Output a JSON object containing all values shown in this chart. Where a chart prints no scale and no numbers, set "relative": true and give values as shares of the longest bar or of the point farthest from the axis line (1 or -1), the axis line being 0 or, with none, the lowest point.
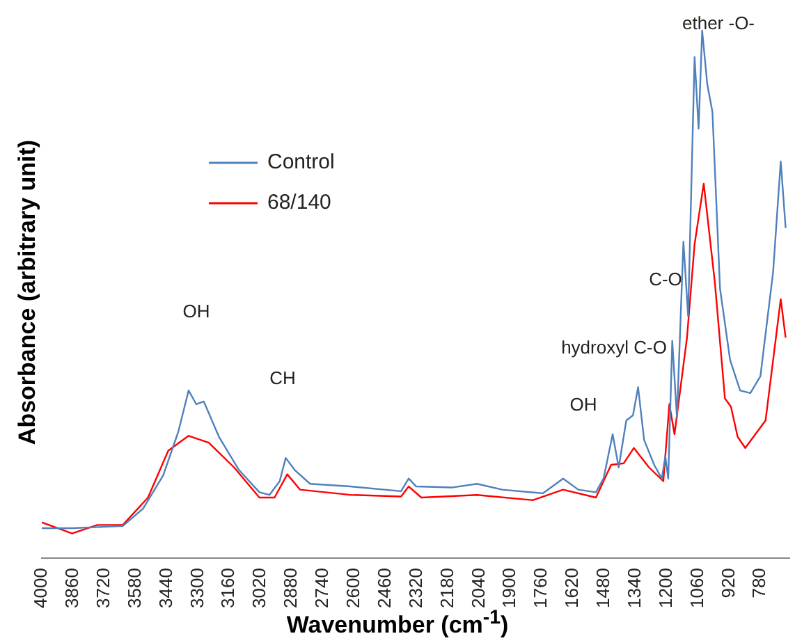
{
  "chart_data": {
    "type": "line",
    "relative": true,
    "xlabel": "Wavenumber (cm$^{-1}$)",
    "ylabel": "Absorbance (arbitrary unit)",
    "xlim": [
      4000,
      650
    ],
    "xticks": [
      4000,
      3860,
      3720,
      3580,
      3440,
      3300,
      3160,
      3020,
      2880,
      2740,
      2600,
      2460,
      2320,
      2180,
      2040,
      1900,
      1760,
      1620,
      1480,
      1340,
      1200,
      1060,
      920,
      780
    ],
    "grid": false,
    "legend": "top left",
    "marker": "none",
    "line_style": "solid",
    "series": [
      {
        "name": "Control",
        "color": "#4f81bd",
        "x": [
          4000,
          3864,
          3637,
          3546,
          3456,
          3388,
          3342,
          3308,
          3274,
          3206,
          3116,
          3025,
          2980,
          2934,
          2907,
          2866,
          2798,
          2617,
          2390,
          2356,
          2322,
          2163,
          2050,
          1937,
          1755,
          1664,
          1596,
          1517,
          1483,
          1442,
          1415,
          1381,
          1351,
          1328,
          1301,
          1256,
          1222,
          1206,
          1193,
          1175,
          1154,
          1125,
          1104,
          1075,
          1057,
          1041,
          1018,
          995,
          961,
          916,
          871,
          825,
          780,
          723,
          689,
          667
        ],
        "values": [
          0.057,
          0.057,
          0.061,
          0.094,
          0.157,
          0.24,
          0.318,
          0.292,
          0.297,
          0.23,
          0.167,
          0.125,
          0.12,
          0.146,
          0.19,
          0.167,
          0.141,
          0.136,
          0.127,
          0.151,
          0.136,
          0.134,
          0.141,
          0.13,
          0.123,
          0.151,
          0.13,
          0.125,
          0.151,
          0.235,
          0.172,
          0.261,
          0.271,
          0.324,
          0.224,
          0.177,
          0.151,
          0.193,
          0.151,
          0.412,
          0.266,
          0.6,
          0.459,
          0.95,
          0.814,
          1.0,
          0.898,
          0.846,
          0.511,
          0.376,
          0.318,
          0.313,
          0.345,
          0.543,
          0.752,
          0.626
        ]
      },
      {
        "name": "68/140",
        "color": "#ff0000",
        "x": [
          4000,
          3864,
          3751,
          3637,
          3524,
          3433,
          3342,
          3252,
          3138,
          3025,
          2957,
          2900,
          2843,
          2617,
          2390,
          2356,
          2299,
          2050,
          1801,
          1664,
          1517,
          1449,
          1392,
          1347,
          1279,
          1215,
          1188,
          1165,
          1109,
          1075,
          1034,
          984,
          939,
          912,
          882,
          848,
          757,
          689,
          667
        ],
        "values": [
          0.068,
          0.047,
          0.063,
          0.063,
          0.115,
          0.204,
          0.232,
          0.219,
          0.172,
          0.115,
          0.115,
          0.159,
          0.13,
          0.12,
          0.117,
          0.136,
          0.115,
          0.12,
          0.11,
          0.13,
          0.115,
          0.177,
          0.18,
          0.209,
          0.172,
          0.146,
          0.292,
          0.235,
          0.418,
          0.595,
          0.71,
          0.522,
          0.303,
          0.287,
          0.23,
          0.209,
          0.261,
          0.491,
          0.418
        ]
      }
    ],
    "annotations": [
      "OH",
      "CH",
      "OH",
      "hydroxyl C-O",
      "C-O",
      "ether -O-"
    ]
  }
}
